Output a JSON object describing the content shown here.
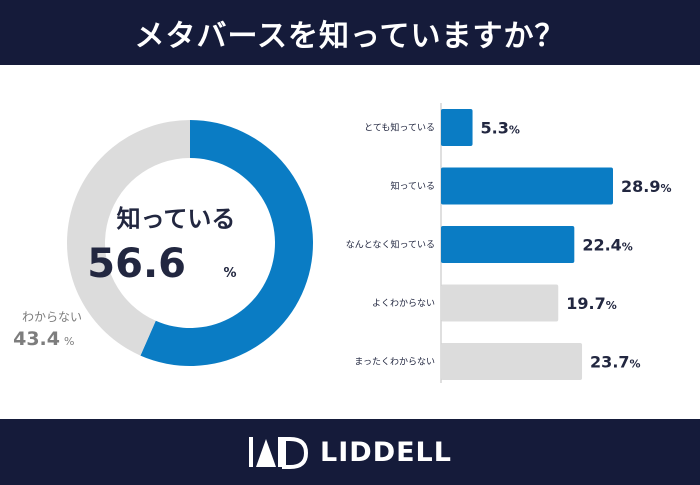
{
  "title": "メタバースを知っていますか？",
  "brand": "LIDDELL",
  "colors": {
    "navy": "#151b3a",
    "blue": "#0a7cc4",
    "gray": "#dcdcdc",
    "text_dark": "#222740",
    "text_gray": "#7d7d7d"
  },
  "chart_data": [
    {
      "type": "pie",
      "subtype": "donut",
      "slices": [
        {
          "label": "知っている",
          "value": 56.6,
          "unit": "%"
        },
        {
          "label": "わからない",
          "value": 43.4,
          "unit": "%"
        }
      ]
    },
    {
      "type": "bar",
      "orientation": "horizontal",
      "categories": [
        "とても知っている",
        "知っている",
        "なんとなく知っている",
        "よくわからない",
        "まったくわからない"
      ],
      "values": [
        5.3,
        28.9,
        22.4,
        19.7,
        23.7
      ],
      "unit": "%",
      "groups": [
        "know",
        "know",
        "know",
        "unknown",
        "unknown"
      ],
      "xlim": [
        0,
        30
      ]
    }
  ]
}
